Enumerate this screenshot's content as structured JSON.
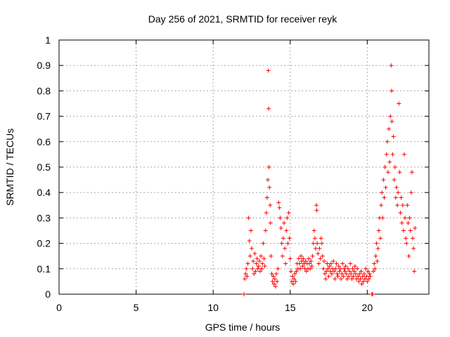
{
  "chart_data": {
    "type": "scatter",
    "title": "Day 256 of 2021, SRMTID for receiver reyk",
    "xlabel": "GPS time / hours",
    "ylabel": "SRMTID / TECUs",
    "xlim": [
      0,
      24
    ],
    "ylim": [
      0,
      1
    ],
    "xticks": [
      0,
      5,
      10,
      15,
      20
    ],
    "xtick_labels": [
      "0",
      "5",
      "10",
      "15",
      "20"
    ],
    "yticks": [
      0,
      0.1,
      0.2,
      0.3,
      0.4,
      0.5,
      0.6,
      0.7,
      0.8,
      0.9,
      1
    ],
    "ytick_labels": [
      "0",
      "0.1",
      "0.2",
      "0.3",
      "0.4",
      "0.5",
      "0.6",
      "0.7",
      "0.8",
      "0.9",
      "1"
    ],
    "grid": true,
    "marker": "+",
    "color": "#ff0000",
    "series": [
      {
        "name": "SRMTID",
        "points": [
          [
            12.0,
            0.0
          ],
          [
            12.05,
            0.06
          ],
          [
            12.1,
            0.08
          ],
          [
            12.15,
            0.1
          ],
          [
            12.2,
            0.07
          ],
          [
            12.25,
            0.12
          ],
          [
            12.3,
            0.3
          ],
          [
            12.35,
            0.21
          ],
          [
            12.4,
            0.15
          ],
          [
            12.45,
            0.25
          ],
          [
            12.5,
            0.18
          ],
          [
            12.55,
            0.1
          ],
          [
            12.6,
            0.13
          ],
          [
            12.65,
            0.08
          ],
          [
            12.7,
            0.16
          ],
          [
            12.75,
            0.09
          ],
          [
            12.8,
            0.12
          ],
          [
            12.85,
            0.14
          ],
          [
            12.9,
            0.1
          ],
          [
            12.95,
            0.11
          ],
          [
            13.0,
            0.13
          ],
          [
            13.05,
            0.09
          ],
          [
            13.1,
            0.15
          ],
          [
            13.15,
            0.1
          ],
          [
            13.2,
            0.12
          ],
          [
            13.25,
            0.2
          ],
          [
            13.3,
            0.14
          ],
          [
            13.35,
            0.11
          ],
          [
            13.4,
            0.25
          ],
          [
            13.45,
            0.32
          ],
          [
            13.5,
            0.38
          ],
          [
            13.55,
            0.45
          ],
          [
            13.58,
            0.88
          ],
          [
            13.6,
            0.73
          ],
          [
            13.62,
            0.5
          ],
          [
            13.65,
            0.42
          ],
          [
            13.7,
            0.35
          ],
          [
            13.72,
            0.28
          ],
          [
            13.75,
            0.15
          ],
          [
            13.8,
            0.08
          ],
          [
            13.85,
            0.05
          ],
          [
            13.9,
            0.07
          ],
          [
            13.95,
            0.04
          ],
          [
            14.0,
            0.06
          ],
          [
            14.05,
            0.03
          ],
          [
            14.1,
            0.08
          ],
          [
            14.15,
            0.05
          ],
          [
            14.2,
            0.1
          ],
          [
            14.25,
            0.36
          ],
          [
            14.3,
            0.34
          ],
          [
            14.35,
            0.3
          ],
          [
            14.4,
            0.26
          ],
          [
            14.45,
            0.2
          ],
          [
            14.5,
            0.15
          ],
          [
            14.55,
            0.22
          ],
          [
            14.6,
            0.28
          ],
          [
            14.65,
            0.18
          ],
          [
            14.7,
            0.12
          ],
          [
            14.75,
            0.25
          ],
          [
            14.8,
            0.3
          ],
          [
            14.85,
            0.2
          ],
          [
            14.9,
            0.32
          ],
          [
            14.95,
            0.22
          ],
          [
            15.0,
            0.14
          ],
          [
            15.05,
            0.09
          ],
          [
            15.1,
            0.05
          ],
          [
            15.15,
            0.07
          ],
          [
            15.2,
            0.04
          ],
          [
            15.25,
            0.06
          ],
          [
            15.3,
            0.08
          ],
          [
            15.35,
            0.05
          ],
          [
            15.4,
            0.09
          ],
          [
            15.45,
            0.12
          ],
          [
            15.5,
            0.1
          ],
          [
            15.55,
            0.14
          ],
          [
            15.6,
            0.12
          ],
          [
            15.65,
            0.1
          ],
          [
            15.7,
            0.15
          ],
          [
            15.75,
            0.13
          ],
          [
            15.8,
            0.11
          ],
          [
            15.85,
            0.14
          ],
          [
            15.9,
            0.12
          ],
          [
            15.95,
            0.1
          ],
          [
            16.0,
            0.13
          ],
          [
            16.05,
            0.09
          ],
          [
            16.1,
            0.12
          ],
          [
            16.15,
            0.1
          ],
          [
            16.2,
            0.14
          ],
          [
            16.25,
            0.12
          ],
          [
            16.3,
            0.1
          ],
          [
            16.35,
            0.13
          ],
          [
            16.4,
            0.11
          ],
          [
            16.45,
            0.15
          ],
          [
            16.5,
            0.2
          ],
          [
            16.55,
            0.25
          ],
          [
            16.6,
            0.22
          ],
          [
            16.65,
            0.18
          ],
          [
            16.7,
            0.35
          ],
          [
            16.72,
            0.33
          ],
          [
            16.75,
            0.2
          ],
          [
            16.8,
            0.16
          ],
          [
            16.85,
            0.12
          ],
          [
            16.9,
            0.18
          ],
          [
            16.95,
            0.14
          ],
          [
            17.0,
            0.22
          ],
          [
            17.05,
            0.2
          ],
          [
            17.1,
            0.15
          ],
          [
            17.15,
            0.1
          ],
          [
            17.2,
            0.13
          ],
          [
            17.25,
            0.08
          ],
          [
            17.3,
            0.06
          ],
          [
            17.35,
            0.09
          ],
          [
            17.4,
            0.12
          ],
          [
            17.45,
            0.1
          ],
          [
            17.5,
            0.07
          ],
          [
            17.55,
            0.11
          ],
          [
            17.6,
            0.09
          ],
          [
            17.65,
            0.12
          ],
          [
            17.7,
            0.08
          ],
          [
            17.75,
            0.1
          ],
          [
            17.8,
            0.13
          ],
          [
            17.85,
            0.09
          ],
          [
            17.9,
            0.06
          ],
          [
            17.95,
            0.1
          ],
          [
            18.0,
            0.12
          ],
          [
            18.05,
            0.08
          ],
          [
            18.1,
            0.07
          ],
          [
            18.15,
            0.11
          ],
          [
            18.2,
            0.09
          ],
          [
            18.25,
            0.1
          ],
          [
            18.3,
            0.06
          ],
          [
            18.35,
            0.08
          ],
          [
            18.4,
            0.12
          ],
          [
            18.45,
            0.07
          ],
          [
            18.5,
            0.1
          ],
          [
            18.55,
            0.09
          ],
          [
            18.6,
            0.11
          ],
          [
            18.65,
            0.08
          ],
          [
            18.7,
            0.06
          ],
          [
            18.75,
            0.1
          ],
          [
            18.8,
            0.07
          ],
          [
            18.85,
            0.09
          ],
          [
            18.9,
            0.12
          ],
          [
            18.95,
            0.08
          ],
          [
            19.0,
            0.06
          ],
          [
            19.05,
            0.1
          ],
          [
            19.1,
            0.07
          ],
          [
            19.15,
            0.09
          ],
          [
            19.2,
            0.11
          ],
          [
            19.25,
            0.08
          ],
          [
            19.3,
            0.06
          ],
          [
            19.35,
            0.1
          ],
          [
            19.4,
            0.07
          ],
          [
            19.45,
            0.05
          ],
          [
            19.5,
            0.08
          ],
          [
            19.55,
            0.06
          ],
          [
            19.6,
            0.09
          ],
          [
            19.65,
            0.04
          ],
          [
            19.7,
            0.07
          ],
          [
            19.75,
            0.05
          ],
          [
            19.8,
            0.08
          ],
          [
            19.85,
            0.06
          ],
          [
            19.9,
            0.1
          ],
          [
            19.95,
            0.07
          ],
          [
            20.0,
            0.05
          ],
          [
            20.05,
            0.09
          ],
          [
            20.1,
            0.06
          ],
          [
            20.15,
            0.08
          ],
          [
            20.2,
            0.07
          ],
          [
            20.3,
            0.0
          ],
          [
            20.35,
            0.0
          ],
          [
            20.4,
            0.09
          ],
          [
            20.45,
            0.12
          ],
          [
            20.5,
            0.1
          ],
          [
            20.55,
            0.15
          ],
          [
            20.6,
            0.2
          ],
          [
            20.65,
            0.13
          ],
          [
            20.7,
            0.18
          ],
          [
            20.75,
            0.25
          ],
          [
            20.8,
            0.3
          ],
          [
            20.85,
            0.22
          ],
          [
            20.9,
            0.35
          ],
          [
            20.95,
            0.4
          ],
          [
            21.0,
            0.3
          ],
          [
            21.05,
            0.45
          ],
          [
            21.1,
            0.38
          ],
          [
            21.15,
            0.5
          ],
          [
            21.2,
            0.42
          ],
          [
            21.25,
            0.55
          ],
          [
            21.3,
            0.6
          ],
          [
            21.35,
            0.48
          ],
          [
            21.4,
            0.65
          ],
          [
            21.45,
            0.52
          ],
          [
            21.5,
            0.7
          ],
          [
            21.55,
            0.9
          ],
          [
            21.58,
            0.8
          ],
          [
            21.6,
            0.68
          ],
          [
            21.65,
            0.55
          ],
          [
            21.7,
            0.62
          ],
          [
            21.75,
            0.45
          ],
          [
            21.8,
            0.5
          ],
          [
            21.85,
            0.38
          ],
          [
            21.9,
            0.42
          ],
          [
            21.95,
            0.35
          ],
          [
            22.0,
            0.4
          ],
          [
            22.05,
            0.75
          ],
          [
            22.1,
            0.48
          ],
          [
            22.15,
            0.32
          ],
          [
            22.2,
            0.38
          ],
          [
            22.25,
            0.28
          ],
          [
            22.3,
            0.35
          ],
          [
            22.35,
            0.25
          ],
          [
            22.4,
            0.55
          ],
          [
            22.45,
            0.3
          ],
          [
            22.5,
            0.22
          ],
          [
            22.55,
            0.2
          ],
          [
            22.6,
            0.35
          ],
          [
            22.65,
            0.28
          ],
          [
            22.7,
            0.15
          ],
          [
            22.75,
            0.3
          ],
          [
            22.8,
            0.25
          ],
          [
            22.85,
            0.4
          ],
          [
            22.9,
            0.48
          ],
          [
            22.95,
            0.22
          ],
          [
            23.0,
            0.18
          ],
          [
            23.05,
            0.09
          ],
          [
            23.1,
            0.26
          ]
        ]
      }
    ]
  }
}
